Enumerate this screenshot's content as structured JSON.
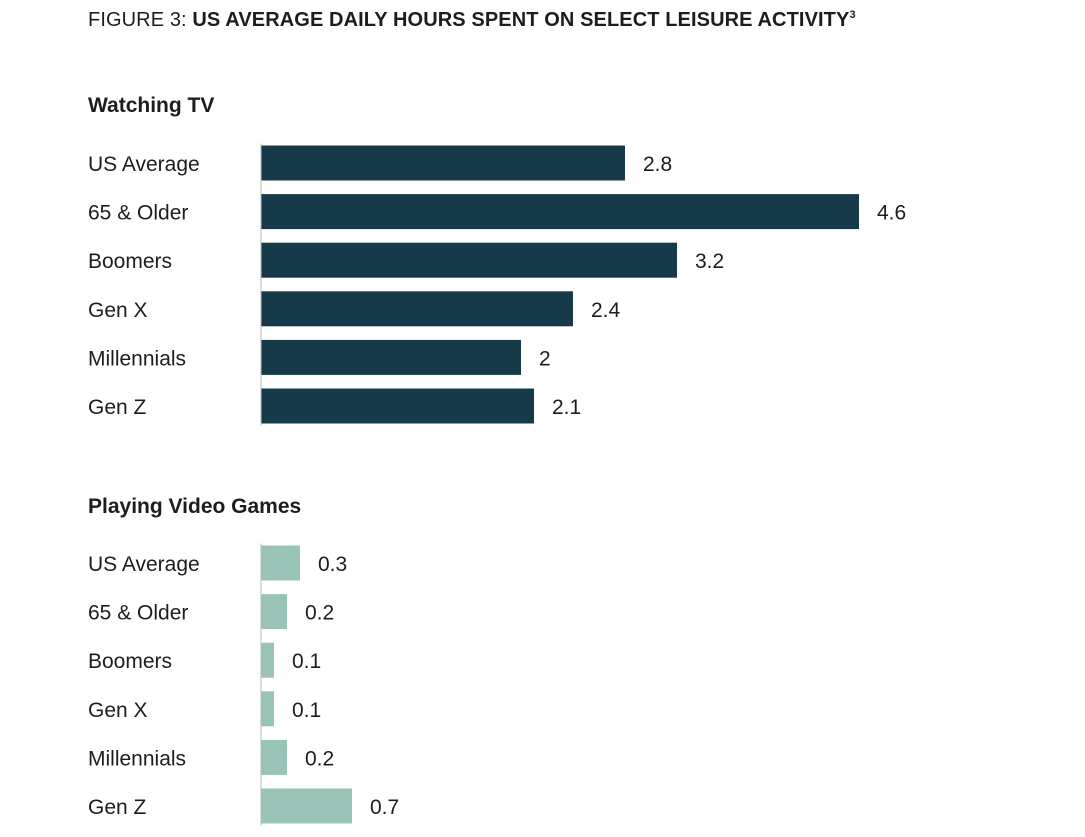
{
  "figure": {
    "prefix": "FIGURE 3: ",
    "title": "US AVERAGE DAILY HOURS SPENT ON SELECT LEISURE ACTIVITY",
    "superscript": "3"
  },
  "chart_data": [
    {
      "type": "bar",
      "orientation": "horizontal",
      "title": "Watching TV",
      "categories": [
        "US Average",
        "65 & Older",
        "Boomers",
        "Gen X",
        "Millennials",
        "Gen Z"
      ],
      "values": [
        2.8,
        4.6,
        3.2,
        2.4,
        2,
        2.1
      ],
      "value_labels": [
        "2.8",
        "4.6",
        "3.2",
        "2.4",
        "2",
        "2.1"
      ],
      "color": "#163a4a",
      "xlabel": "",
      "ylabel": "",
      "grid": false,
      "legend": "none"
    },
    {
      "type": "bar",
      "orientation": "horizontal",
      "title": "Playing Video Games",
      "categories": [
        "US Average",
        "65 & Older",
        "Boomers",
        "Gen X",
        "Millennials",
        "Gen Z"
      ],
      "values": [
        0.3,
        0.2,
        0.1,
        0.1,
        0.2,
        0.7
      ],
      "value_labels": [
        "0.3",
        "0.2",
        "0.1",
        "0.1",
        "0.2",
        "0.7"
      ],
      "color": "#9ac3b7",
      "xlabel": "",
      "ylabel": "",
      "grid": false,
      "legend": "none"
    }
  ]
}
